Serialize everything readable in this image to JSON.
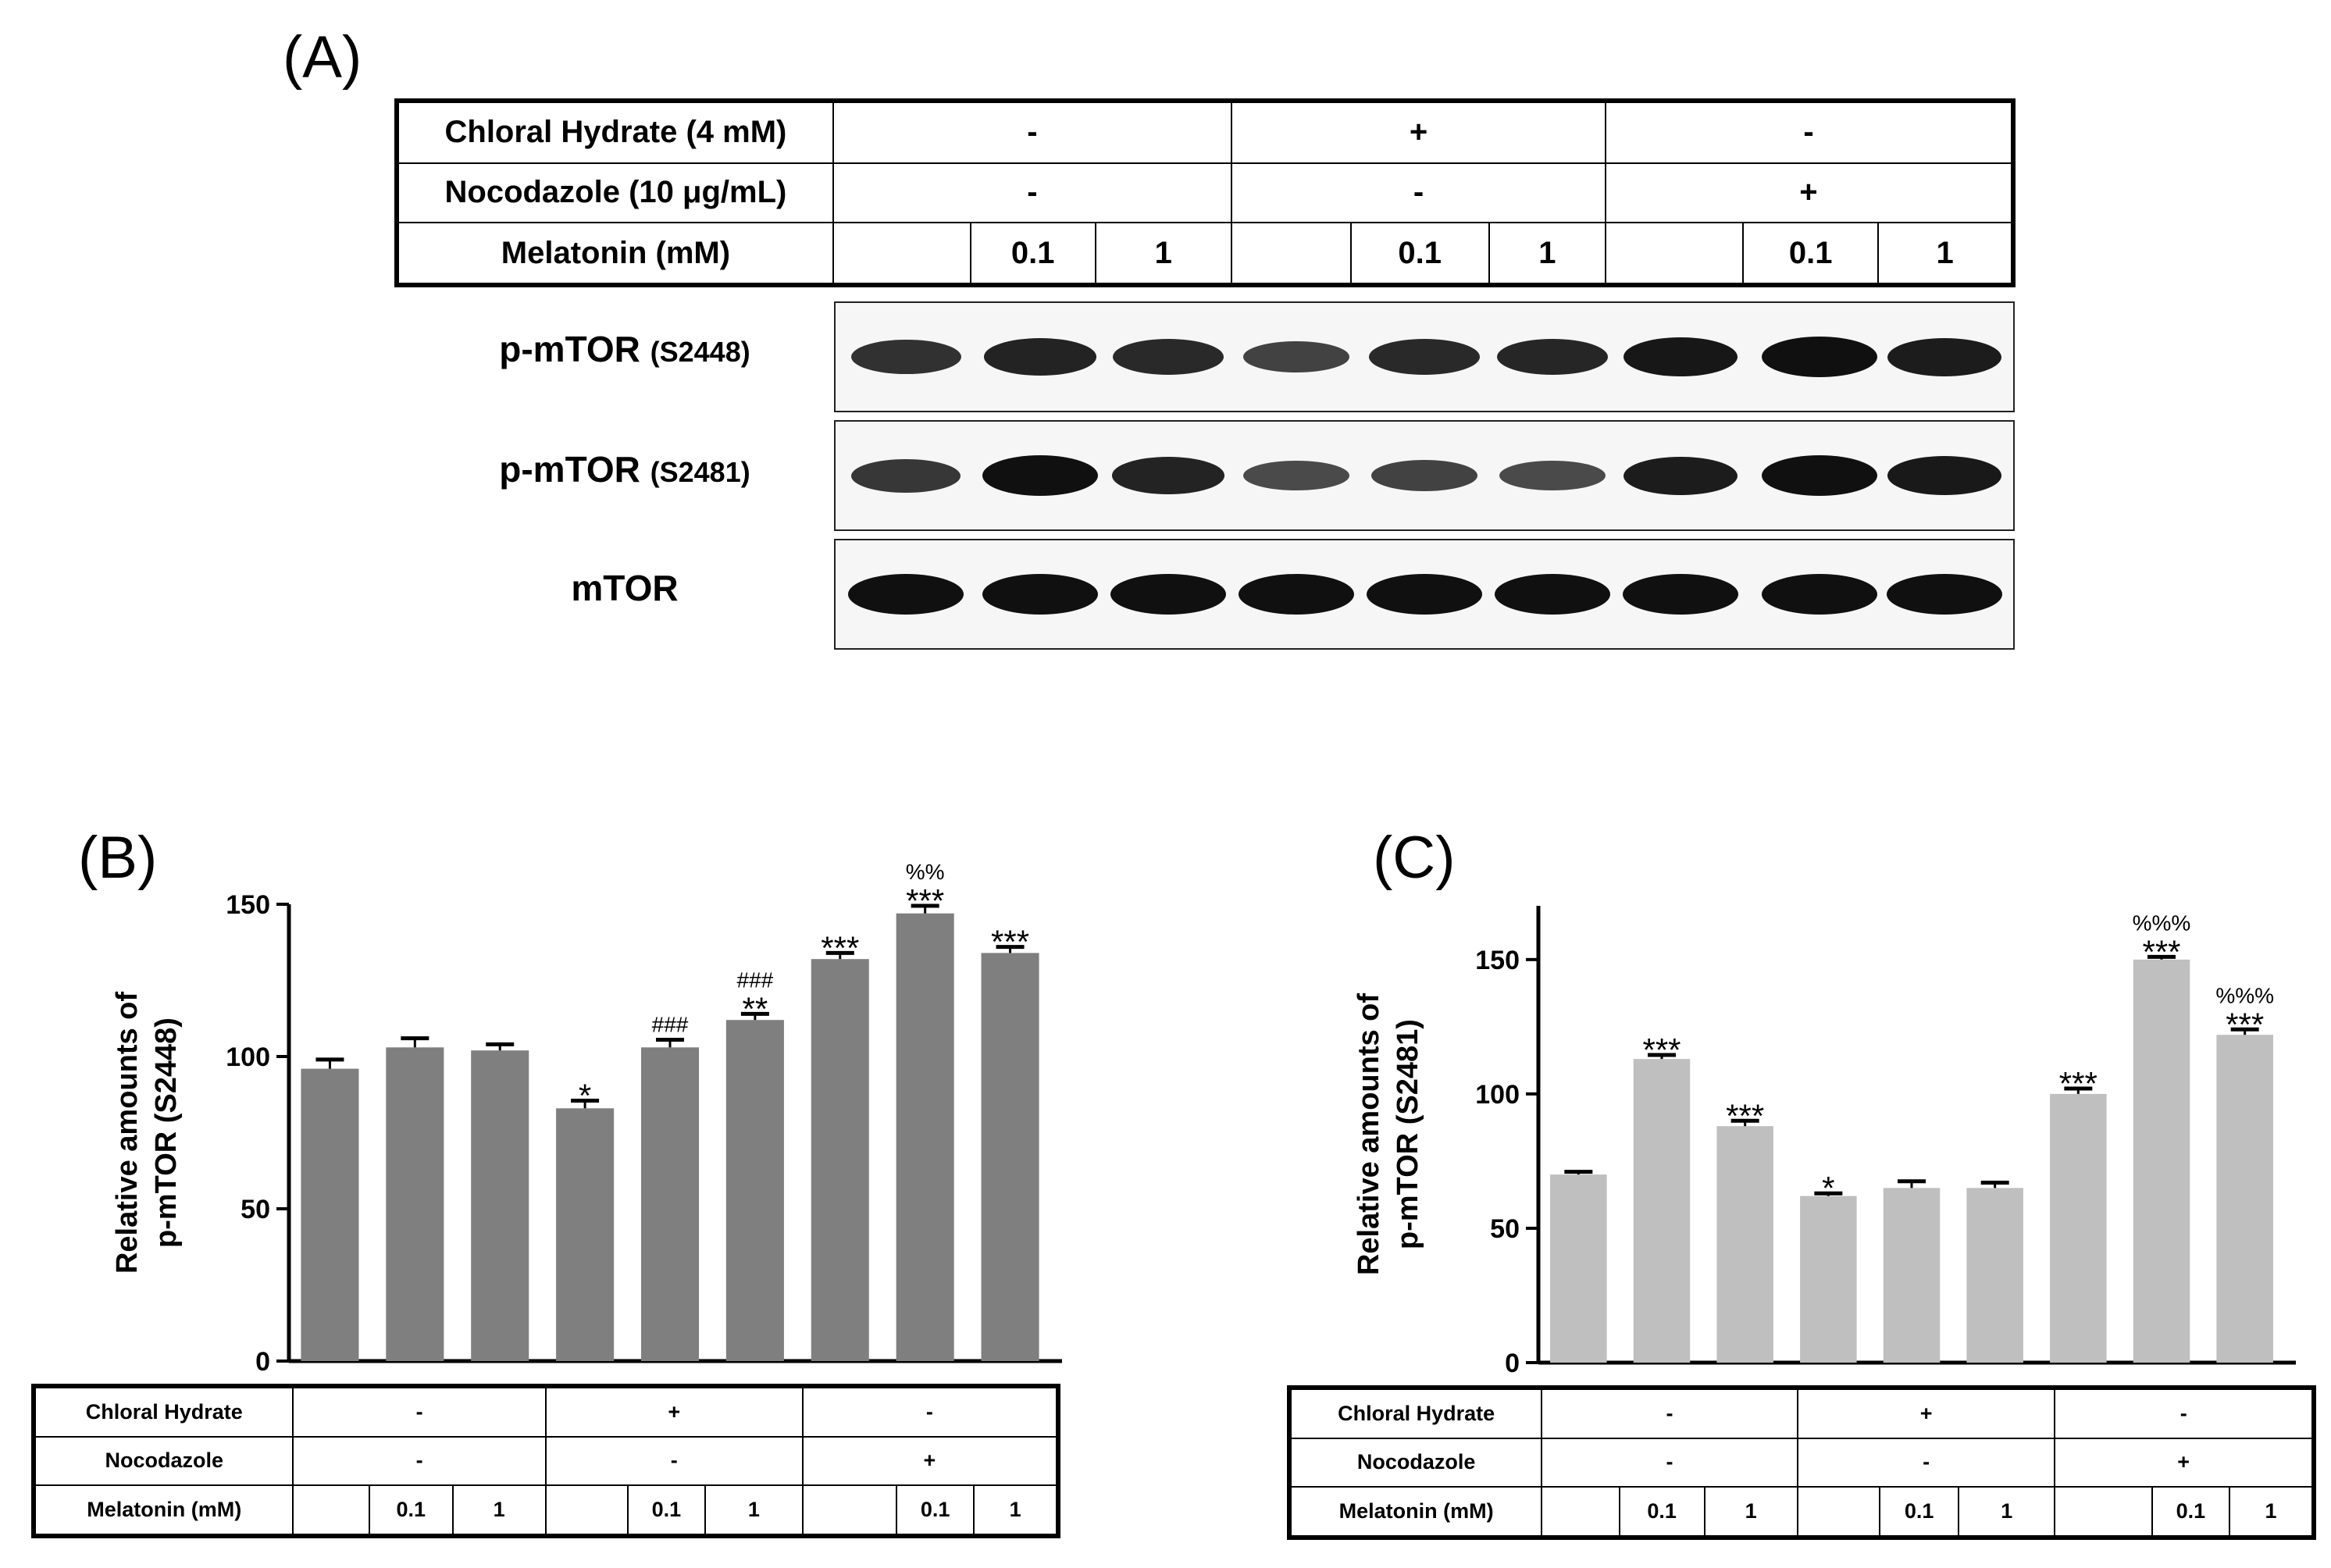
{
  "panelA": {
    "letter": "(A)",
    "conditions": {
      "row1_label": "Chloral Hydrate  (4 mM)",
      "row2_label": "Nocodazole (10 μg/mL)",
      "row3_label": "Melatonin (mM)",
      "row1_values": [
        "-",
        "+",
        "-"
      ],
      "row2_values": [
        "-",
        "-",
        "+"
      ],
      "mel": [
        "",
        "0.1",
        "1",
        "",
        "0.1",
        "1",
        "",
        "0.1",
        "1"
      ]
    },
    "blots": [
      {
        "name": "p-mTOR",
        "site": "(S2448)",
        "intensity": [
          0.75,
          0.85,
          0.8,
          0.6,
          0.8,
          0.82,
          0.95,
          1.0,
          0.9
        ]
      },
      {
        "name": "p-mTOR",
        "site": "(S2481)",
        "intensity": [
          0.7,
          1.0,
          0.85,
          0.55,
          0.6,
          0.55,
          0.9,
          1.0,
          0.92
        ]
      },
      {
        "name": "mTOR",
        "site": "",
        "intensity": [
          1,
          1,
          1,
          1,
          1,
          1,
          1,
          1,
          1
        ]
      }
    ]
  },
  "panelB": {
    "letter": "(B)",
    "ylabel_line1": "Relative amounts of",
    "ylabel_line2": "p-mTOR (S2448)",
    "ticks": [
      "0",
      "50",
      "100",
      "150"
    ],
    "table": {
      "row1_label": "Chloral Hydrate",
      "row2_label": "Nocodazole",
      "row3_label": "Melatonin (mM)",
      "row1_values": [
        "-",
        "+",
        "-"
      ],
      "row2_values": [
        "-",
        "-",
        "+"
      ],
      "mel": [
        "",
        "0.1",
        "1",
        "",
        "0.1",
        "1",
        "",
        "0.1",
        "1"
      ]
    }
  },
  "panelC": {
    "letter": "(C)",
    "ylabel_line1": "Relative amounts of",
    "ylabel_line2": "p-mTOR (S2481)",
    "ticks": [
      "0",
      "50",
      "100",
      "150"
    ],
    "table": {
      "row1_label": "Chloral Hydrate",
      "row2_label": "Nocodazole",
      "row3_label": "Melatonin (mM)",
      "row1_values": [
        "-",
        "+",
        "-"
      ],
      "row2_values": [
        "-",
        "-",
        "+"
      ],
      "mel": [
        "",
        "0.1",
        "1",
        "",
        "0.1",
        "1",
        "",
        "0.1",
        "1"
      ]
    }
  },
  "chart_data": [
    {
      "type": "bar",
      "panel": "B",
      "ylabel": "Relative amounts of p-mTOR (S2448)",
      "ylim": [
        0,
        150
      ],
      "yticks": [
        0,
        50,
        100,
        150
      ],
      "color": "#7f7f7f",
      "values": [
        96,
        103,
        102,
        83,
        103,
        112,
        132,
        147,
        134
      ],
      "errors": [
        3,
        3,
        2,
        2.5,
        2.5,
        2,
        2,
        2.5,
        2
      ],
      "annotations": [
        [],
        [],
        [],
        [
          "*"
        ],
        [
          "###"
        ],
        [
          "**",
          "###"
        ],
        [
          "***"
        ],
        [
          "***",
          "%%"
        ],
        [
          "***"
        ]
      ]
    },
    {
      "type": "bar",
      "panel": "C",
      "ylabel": "Relative amounts of p-mTOR (S2481)",
      "ylim": [
        0,
        170
      ],
      "yticks": [
        0,
        50,
        100,
        150
      ],
      "color": "#bfbfbf",
      "values": [
        70,
        113,
        88,
        62,
        65,
        65,
        100,
        150,
        122
      ],
      "errors": [
        1,
        1.5,
        2,
        1,
        2.5,
        2,
        2,
        1,
        2
      ],
      "annotations": [
        [],
        [
          "***"
        ],
        [
          "***"
        ],
        [
          "*"
        ],
        [],
        [],
        [
          "***"
        ],
        [
          "***",
          "%%%"
        ],
        [
          "***",
          "%%%"
        ]
      ]
    }
  ]
}
